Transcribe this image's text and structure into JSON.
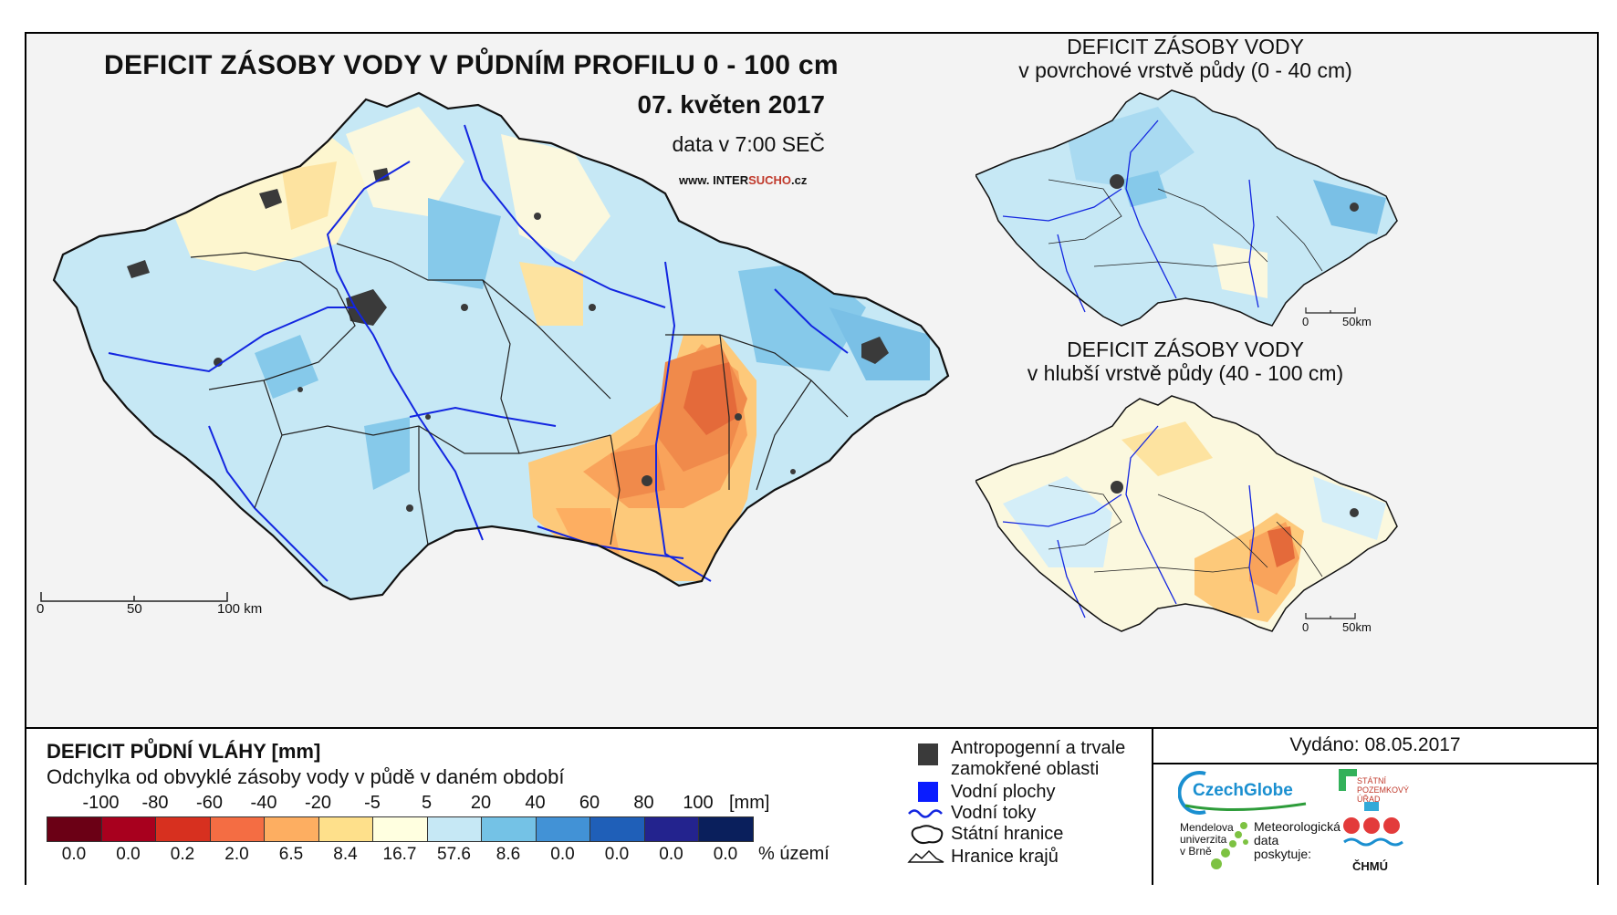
{
  "main_map": {
    "title": "DEFICIT ZÁSOBY VODY V PŮDNÍM PROFILU 0 - 100 cm",
    "date": "07. květen 2017",
    "data_time": "data v 7:00 SEČ",
    "website_prefix": "www. INTER",
    "website_highlight": "SUCHO",
    "website_suffix": ".cz",
    "scalebar": [
      "0",
      "50",
      "100 km"
    ]
  },
  "inset_top": {
    "title_line1": "DEFICIT ZÁSOBY VODY",
    "title_line2": "v povrchové vrstvě půdy (0 - 40 cm)",
    "scalebar": [
      "0",
      "50km"
    ]
  },
  "inset_bottom": {
    "title_line1": "DEFICIT ZÁSOBY VODY",
    "title_line2": "v hlubší vrstvě půdy (40 - 100 cm)",
    "scalebar": [
      "0",
      "50km"
    ]
  },
  "legend": {
    "title": "DEFICIT PŮDNÍ VLÁHY [mm]",
    "subtitle": "Odchylka od obvyklé zásoby vody v půdě v daném období",
    "breaks": [
      "-100",
      "-80",
      "-60",
      "-40",
      "-20",
      "-5",
      "5",
      "20",
      "40",
      "60",
      "80",
      "100"
    ],
    "unit": "[mm]",
    "colors": [
      "#6b0015",
      "#a8001e",
      "#d7301f",
      "#f46d43",
      "#fdae61",
      "#fee08b",
      "#ffffe0",
      "#c6e8f5",
      "#74c2e6",
      "#4292d6",
      "#1f5fb8",
      "#23238e",
      "#0a1f5c"
    ],
    "percentages": [
      "0.0",
      "0.0",
      "0.2",
      "2.0",
      "6.5",
      "8.4",
      "16.7",
      "57.6",
      "8.6",
      "0.0",
      "0.0",
      "0.0",
      "0.0"
    ],
    "percent_label": "% území"
  },
  "symbols": {
    "anthropogenic": "Antropogenní a trvale zamokřené oblasti",
    "water_bodies": "Vodní plochy",
    "rivers": "Vodní toky",
    "state_border": "Státní hranice",
    "region_border": "Hranice krajů"
  },
  "issued": "Vydáno: 08.05.2017",
  "logos": {
    "czechglobe": "CzechGlobe",
    "szu": [
      "STÁTNÍ",
      "POZEMKOVÝ",
      "ÚŘAD"
    ],
    "mendelu": [
      "Mendelova",
      "univerzita",
      "v Brně"
    ],
    "chmu_caption": [
      "Meteorologická",
      "data",
      "poskytuje:"
    ],
    "chmu": "ČHMÚ"
  }
}
